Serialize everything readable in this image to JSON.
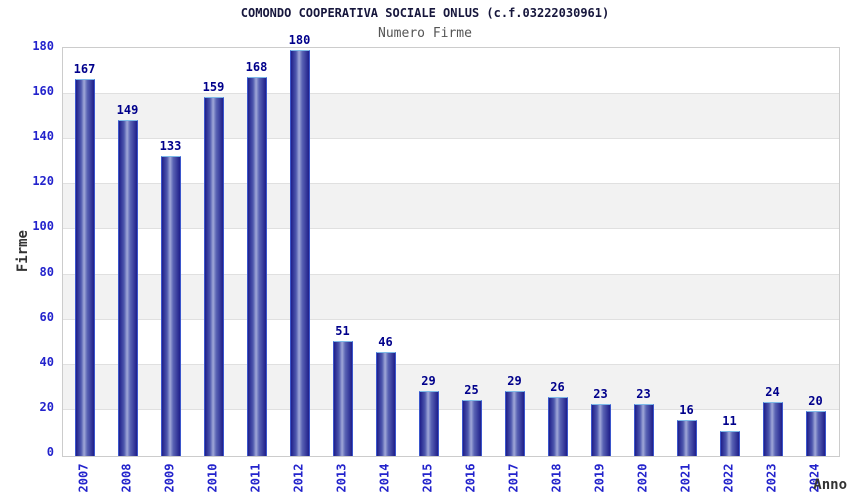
{
  "header": {
    "title": "COMONDO COOPERATIVA SOCIALE ONLUS (c.f.03222030961)",
    "subtitle": "Numero Firme"
  },
  "chart_data": {
    "type": "bar",
    "title": "COMONDO COOPERATIVA SOCIALE ONLUS (c.f.03222030961)",
    "subtitle": "Numero Firme",
    "xlabel": "Anno",
    "ylabel": "Firme",
    "categories": [
      "2007",
      "2008",
      "2009",
      "2010",
      "2011",
      "2012",
      "2013",
      "2014",
      "2015",
      "2016",
      "2017",
      "2018",
      "2019",
      "2020",
      "2021",
      "2022",
      "2023",
      "2024"
    ],
    "values": [
      167,
      149,
      133,
      159,
      168,
      180,
      51,
      46,
      29,
      25,
      29,
      26,
      23,
      23,
      16,
      11,
      24,
      20
    ],
    "yticks": [
      0,
      20,
      40,
      60,
      80,
      100,
      120,
      140,
      160,
      180
    ],
    "ylim": [
      0,
      180
    ],
    "grid": true,
    "band_stripes": true,
    "legend_position": "none",
    "bar_labels_shown": true
  },
  "colors": {
    "bar_dark": "#1f1f8a",
    "bar_light": "#a0a8d8",
    "bar_border_side": "#3b56cc",
    "bar_border_top": "#7db9e8",
    "tick_label": "#2323cc",
    "value_label": "#00008b",
    "title": "#16163c",
    "subtitle": "#555555",
    "axis_title": "#333333",
    "band": "#f2f2f2",
    "gridline": "#e0e0e0",
    "plot_border": "#cccccc",
    "background": "#ffffff"
  }
}
